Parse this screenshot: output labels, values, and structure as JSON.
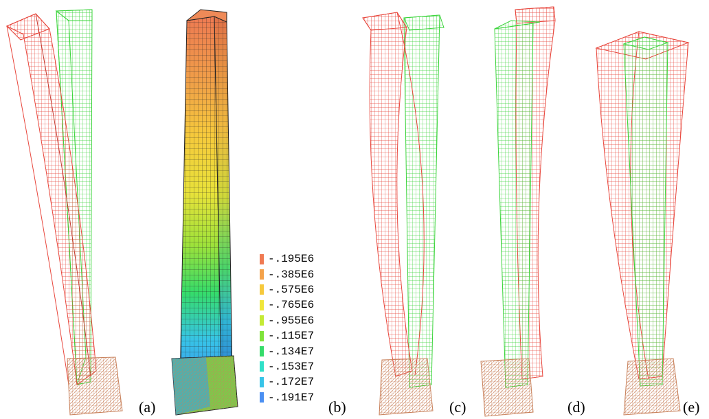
{
  "panels": [
    {
      "id": "a",
      "label": "(a)"
    },
    {
      "id": "b",
      "label": "(b)"
    },
    {
      "id": "c",
      "label": "(c)"
    },
    {
      "id": "d",
      "label": "(d)"
    },
    {
      "id": "e",
      "label": "(e)"
    }
  ],
  "legend": {
    "items": [
      {
        "label": "-.195E6",
        "color": "#f07a52"
      },
      {
        "label": "-.385E6",
        "color": "#f4a24a"
      },
      {
        "label": "-.575E6",
        "color": "#f6c93c"
      },
      {
        "label": "-.765E6",
        "color": "#f0e63a"
      },
      {
        "label": "-.955E6",
        "color": "#c4ea34"
      },
      {
        "label": "-.115E7",
        "color": "#7fe33a"
      },
      {
        "label": "-.134E7",
        "color": "#35dc6a"
      },
      {
        "label": "-.153E7",
        "color": "#2fe0c8"
      },
      {
        "label": "-.172E7",
        "color": "#37c4e8"
      },
      {
        "label": "-.191E7",
        "color": "#4a8ff2"
      }
    ]
  },
  "colors": {
    "deformed": "#e8463c",
    "undeformed": "#3ad43a",
    "base": "#d9a06a"
  }
}
